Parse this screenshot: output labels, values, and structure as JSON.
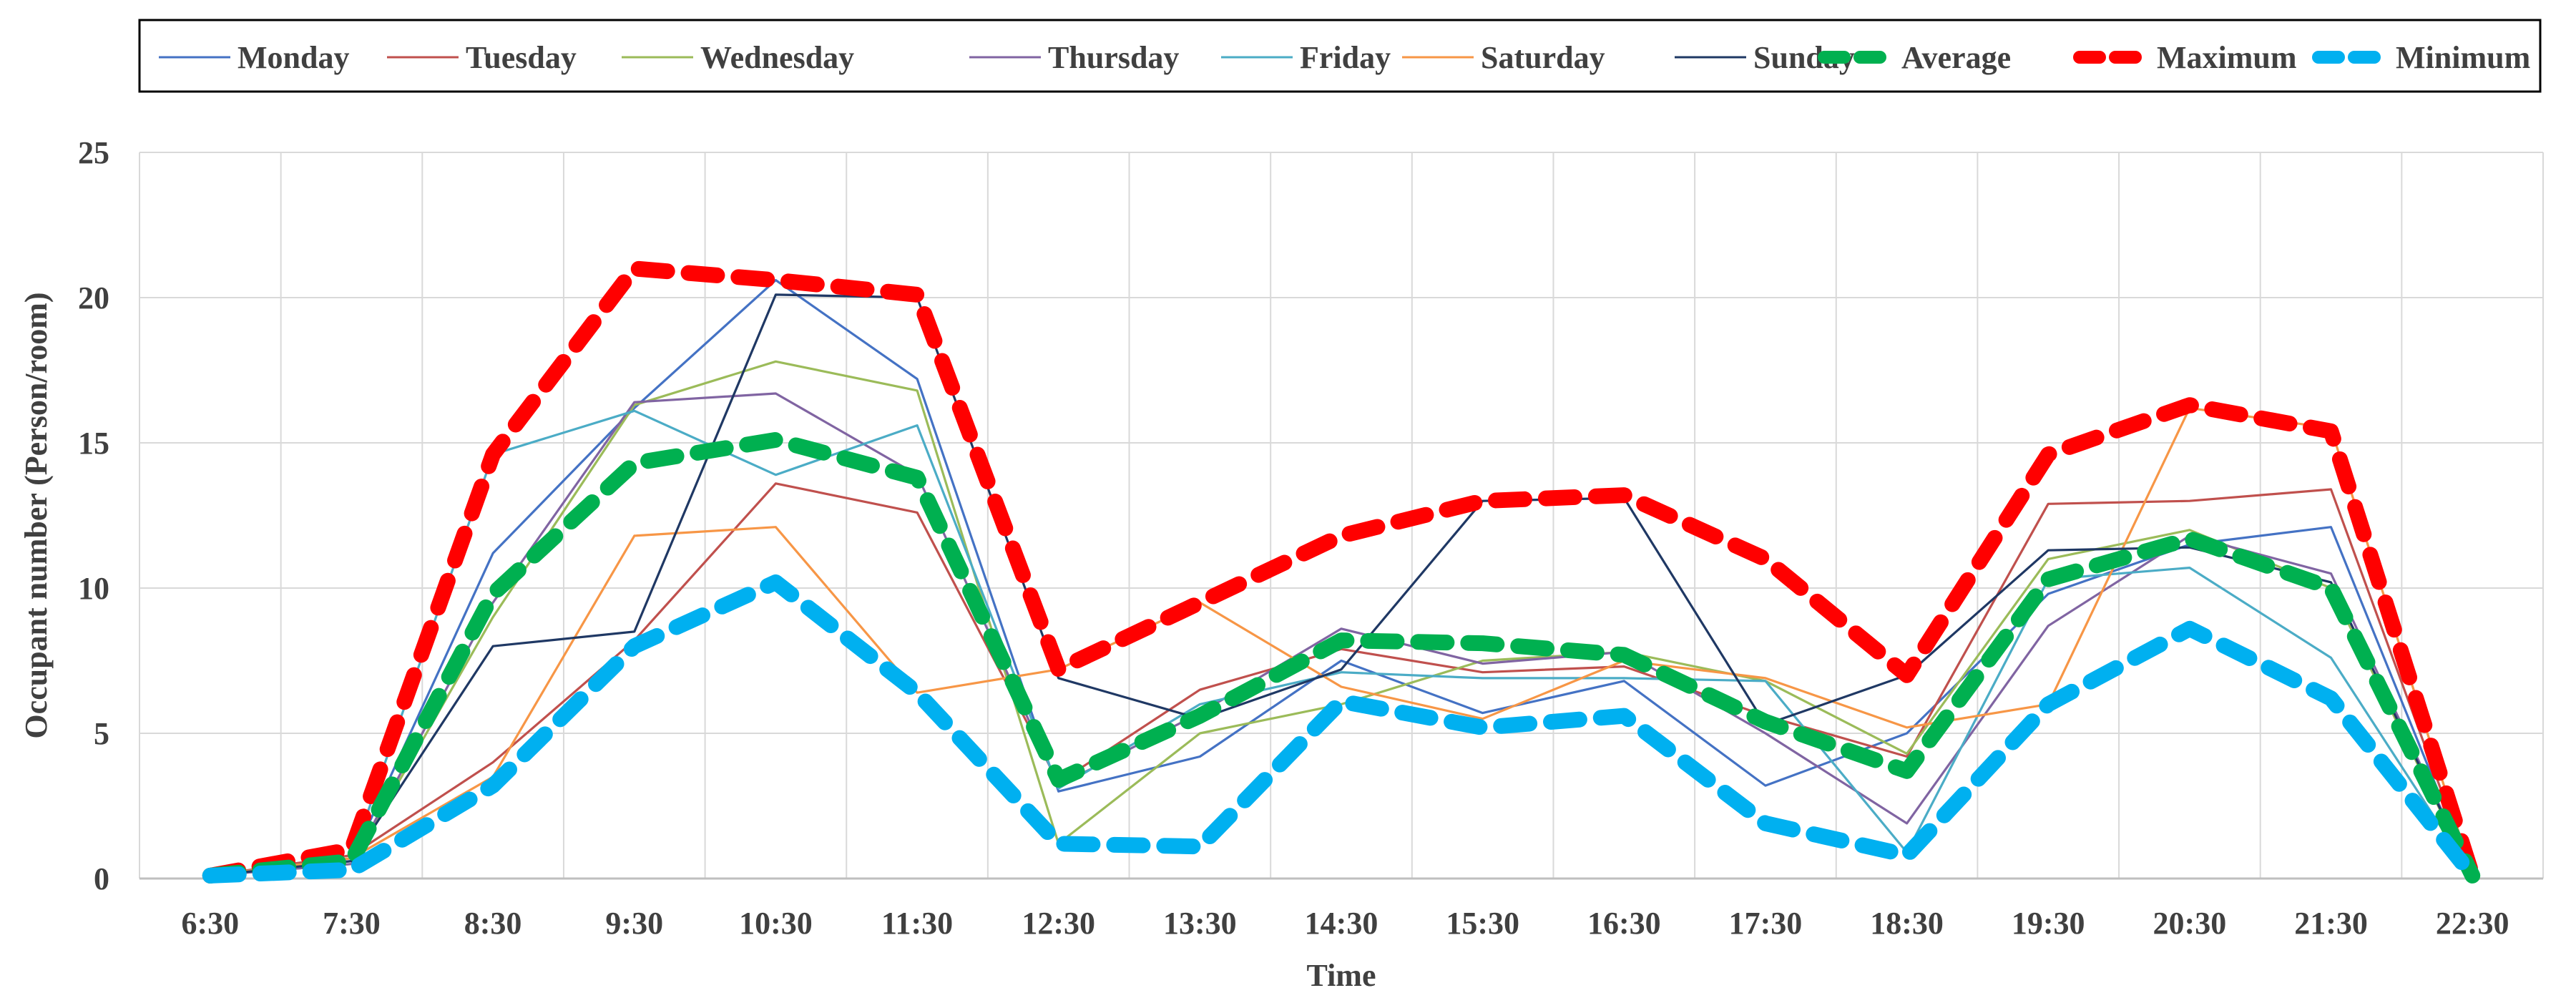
{
  "chart_data": {
    "type": "line",
    "title": "",
    "xlabel": "Time",
    "ylabel": "Occupant number (Person/room)",
    "ylim": [
      0,
      25
    ],
    "yticks": [
      0,
      5,
      10,
      15,
      20,
      25
    ],
    "grid": true,
    "legend_position": "top",
    "categories": [
      "6:30",
      "7:30",
      "8:30",
      "9:30",
      "10:30",
      "11:30",
      "12:30",
      "13:30",
      "14:30",
      "15:30",
      "16:30",
      "17:30",
      "18:30",
      "19:30",
      "20:30",
      "21:30",
      "22:30"
    ],
    "series": [
      {
        "name": "Monday",
        "color": "#4472c4",
        "style": "thin",
        "values": [
          0.1,
          0.6,
          11.2,
          16.2,
          20.6,
          17.2,
          3.0,
          4.2,
          7.5,
          5.7,
          6.8,
          3.2,
          5.0,
          9.8,
          11.5,
          12.1,
          0.1
        ]
      },
      {
        "name": "Tuesday",
        "color": "#c0504d",
        "style": "thin",
        "values": [
          0.1,
          0.8,
          4.0,
          8.2,
          13.6,
          12.6,
          3.3,
          6.5,
          7.9,
          7.1,
          7.3,
          5.6,
          4.2,
          12.9,
          13.0,
          13.4,
          0.1
        ]
      },
      {
        "name": "Wednesday",
        "color": "#9bbb59",
        "style": "thin",
        "values": [
          0.1,
          0.5,
          9.0,
          16.3,
          17.8,
          16.8,
          1.2,
          5.0,
          6.0,
          7.5,
          7.8,
          6.8,
          4.3,
          11.0,
          12.0,
          10.0,
          0.1
        ]
      },
      {
        "name": "Thursday",
        "color": "#8064a2",
        "style": "thin",
        "values": [
          0.1,
          0.5,
          9.5,
          16.4,
          16.7,
          13.9,
          3.2,
          5.7,
          8.6,
          7.4,
          7.8,
          5.0,
          1.9,
          8.7,
          11.8,
          10.5,
          0.1
        ]
      },
      {
        "name": "Friday",
        "color": "#4bacc6",
        "style": "thin",
        "values": [
          0.1,
          0.7,
          14.6,
          16.1,
          13.9,
          15.6,
          3.1,
          6.0,
          7.1,
          6.9,
          6.9,
          6.8,
          0.9,
          10.3,
          10.7,
          7.6,
          0.1
        ]
      },
      {
        "name": "Saturday",
        "color": "#f79646",
        "style": "thin",
        "values": [
          0.1,
          0.7,
          3.5,
          11.8,
          12.1,
          6.4,
          7.2,
          9.5,
          6.6,
          5.5,
          7.5,
          6.9,
          5.2,
          6.0,
          16.2,
          15.5,
          0.1
        ]
      },
      {
        "name": "Sunday",
        "color": "#1f3864",
        "style": "thin",
        "values": [
          0.1,
          0.6,
          8.0,
          8.5,
          20.1,
          20.0,
          6.9,
          5.5,
          7.2,
          13.0,
          13.1,
          5.3,
          7.0,
          11.3,
          11.4,
          10.2,
          0.1
        ]
      },
      {
        "name": "Average",
        "color": "#00b050",
        "style": "thick",
        "values": [
          0.1,
          0.6,
          9.8,
          14.3,
          15.1,
          13.8,
          3.4,
          5.6,
          8.2,
          8.1,
          7.7,
          5.4,
          3.7,
          10.3,
          11.7,
          10.0,
          0.1
        ]
      },
      {
        "name": "Maximum",
        "color": "#ff0000",
        "style": "thick",
        "values": [
          0.1,
          1.0,
          14.6,
          21.0,
          20.6,
          20.1,
          7.2,
          9.5,
          11.8,
          13.0,
          13.2,
          11.0,
          7.0,
          14.6,
          16.3,
          15.4,
          0.1
        ]
      },
      {
        "name": "Minimum",
        "color": "#00b0f0",
        "style": "thick",
        "values": [
          0.1,
          0.3,
          3.2,
          8.0,
          10.2,
          6.4,
          1.2,
          1.1,
          6.1,
          5.2,
          5.6,
          1.9,
          0.8,
          6.0,
          8.6,
          6.2,
          0.1
        ]
      }
    ]
  }
}
